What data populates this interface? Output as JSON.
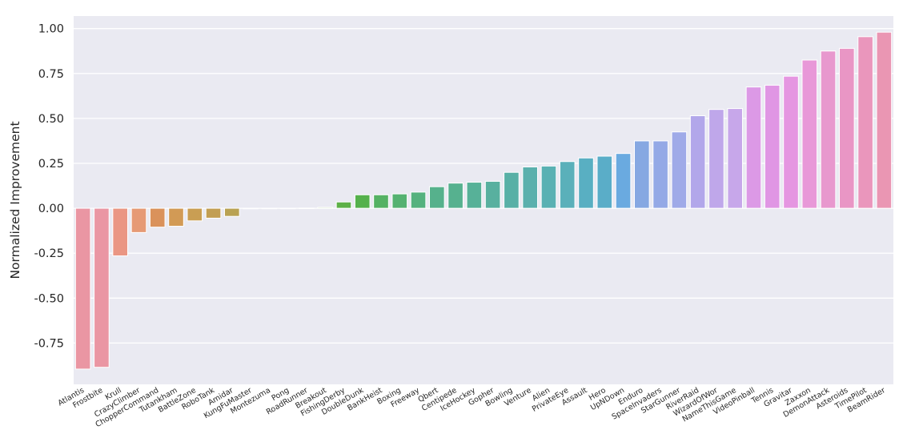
{
  "chart_data": {
    "type": "bar",
    "title": "",
    "xlabel": "",
    "ylabel": "Normalized Improvement",
    "ylim": [
      -0.98,
      1.07
    ],
    "yticks": [
      "1.00",
      "0.75",
      "0.50",
      "0.25",
      "0.00",
      "-0.25",
      "-0.50",
      "-0.75"
    ],
    "grid": true,
    "background": "#EAEAF2",
    "categories": [
      "Atlantis",
      "Frostbite",
      "Krull",
      "CrazyClimber",
      "ChopperCommand",
      "Tutankham",
      "BattleZone",
      "RoboTank",
      "Amidar",
      "KungFuMaster",
      "Montezuma",
      "Pong",
      "RoadRunner",
      "Breakout",
      "FishingDerby",
      "DoubleDunk",
      "BankHeist",
      "Boxing",
      "Freeway",
      "Qbert",
      "Centipede",
      "IceHockey",
      "Gopher",
      "Bowling",
      "Venture",
      "Alien",
      "PrivateEye",
      "Assault",
      "Hero",
      "UpNDown",
      "Enduro",
      "SpaceInvaders",
      "StarGunner",
      "RiverRaid",
      "WizardOfWor",
      "NameThisGame",
      "VideoPinball",
      "Tennis",
      "Gravitar",
      "Zaxxon",
      "DemonAttack",
      "Asteroids",
      "TimePilot",
      "BeamRider"
    ],
    "values": [
      -0.895,
      -0.885,
      -0.265,
      -0.135,
      -0.105,
      -0.1,
      -0.07,
      -0.055,
      -0.045,
      -0.003,
      -0.001,
      0.0,
      0.001,
      0.005,
      0.035,
      0.075,
      0.075,
      0.08,
      0.09,
      0.12,
      0.14,
      0.145,
      0.15,
      0.2,
      0.23,
      0.235,
      0.26,
      0.28,
      0.29,
      0.305,
      0.375,
      0.375,
      0.425,
      0.515,
      0.55,
      0.555,
      0.675,
      0.685,
      0.735,
      0.825,
      0.875,
      0.89,
      0.955,
      0.98
    ],
    "colors": [
      "#EA96A3",
      "#EA96A3",
      "#EA9683",
      "#E69A75",
      "#DA925B",
      "#D29A55",
      "#C99E53",
      "#C29E53",
      "#B9A253",
      "#B0A453",
      "#A6A853",
      "#9AAE54",
      "#8DB254",
      "#7FB65A",
      "#5DB047",
      "#55B14C",
      "#55B264",
      "#55B271",
      "#55B27E",
      "#56B18C",
      "#56B18F",
      "#57B198",
      "#58B09F",
      "#58B0A6",
      "#5AB0AD",
      "#59B1B3",
      "#5AB0BA",
      "#59AFC2",
      "#5AADC8",
      "#6AAAE0",
      "#86A8E2",
      "#94A9E6",
      "#9FAAE8",
      "#B2A7EA",
      "#BFA7EA",
      "#C7A7EA",
      "#DC99E6",
      "#E096E4",
      "#E596E1",
      "#E898D8",
      "#E898CE",
      "#E996C5",
      "#EA96BC",
      "#EA96B3"
    ]
  }
}
